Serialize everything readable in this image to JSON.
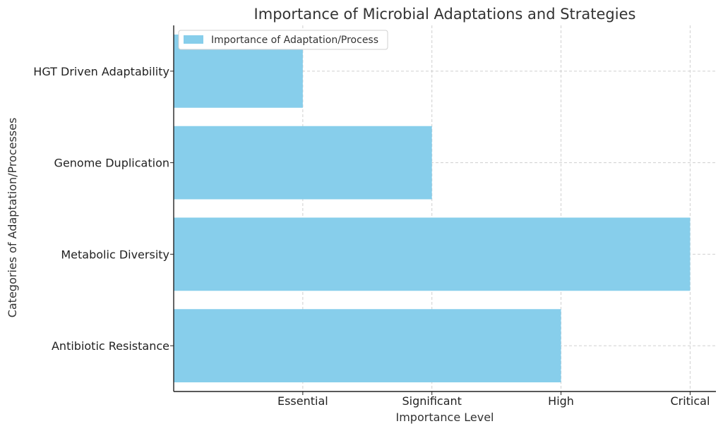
{
  "chart_data": {
    "type": "bar",
    "orientation": "horizontal",
    "title": "Importance of Microbial Adaptations and Strategies",
    "xlabel": "Importance Level",
    "ylabel": "Categories of Adaptation/Processes",
    "categories": [
      "Antibiotic Resistance",
      "Metabolic Diversity",
      "Genome Duplication",
      "HGT Driven Adaptability"
    ],
    "series": [
      {
        "name": "Importance of Adaptation/Process",
        "values": [
          3,
          4,
          2,
          1
        ],
        "color": "#87ceeb"
      }
    ],
    "x_ticks": [
      {
        "value": 1,
        "label": "Essential"
      },
      {
        "value": 2,
        "label": "Significant"
      },
      {
        "value": 3,
        "label": "High"
      },
      {
        "value": 4,
        "label": "Critical"
      }
    ],
    "xlim": [
      0,
      4.2
    ],
    "grid": true,
    "legend_position": "top-left"
  }
}
